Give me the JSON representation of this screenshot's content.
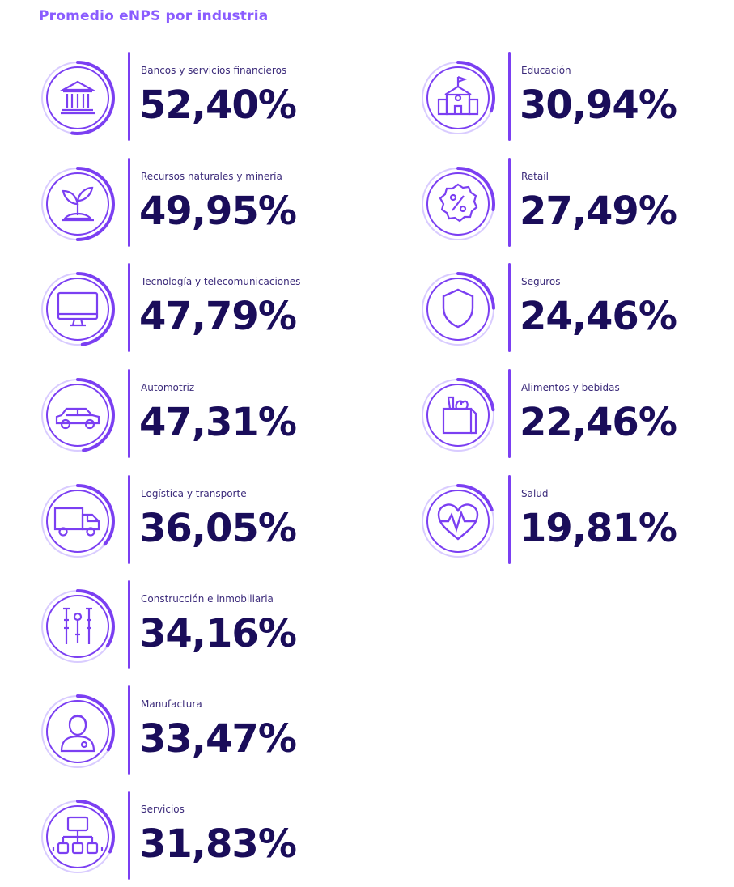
{
  "chart_data": {
    "type": "table",
    "title": "Promedio eNPS por industria",
    "items": [
      {
        "label": "Bancos y servicios financieros",
        "value": "52,40%",
        "num": 52.4,
        "icon": "bank-icon"
      },
      {
        "label": "Recursos naturales y minería",
        "value": "49,95%",
        "num": 49.95,
        "icon": "plant-icon"
      },
      {
        "label": "Tecnología y telecomunicaciones",
        "value": "47,79%",
        "num": 47.79,
        "icon": "monitor-icon"
      },
      {
        "label": "Automotriz",
        "value": "47,31%",
        "num": 47.31,
        "icon": "car-icon"
      },
      {
        "label": "Logística y transporte",
        "value": "36,05%",
        "num": 36.05,
        "icon": "truck-icon"
      },
      {
        "label": "Construcción e inmobiliaria",
        "value": "34,16%",
        "num": 34.16,
        "icon": "tools-icon"
      },
      {
        "label": "Manufactura",
        "value": "33,47%",
        "num": 33.47,
        "icon": "worker-icon"
      },
      {
        "label": "Servicios",
        "value": "31,83%",
        "num": 31.83,
        "icon": "network-icon"
      },
      {
        "label": "Educación",
        "value": "30,94%",
        "num": 30.94,
        "icon": "school-icon"
      },
      {
        "label": "Retail",
        "value": "27,49%",
        "num": 27.49,
        "icon": "discount-badge-icon"
      },
      {
        "label": "Seguros",
        "value": "24,46%",
        "num": 24.46,
        "icon": "shield-icon"
      },
      {
        "label": "Alimentos y bebidas",
        "value": "22,46%",
        "num": 22.46,
        "icon": "grocery-bag-icon"
      },
      {
        "label": "Salud",
        "value": "19,81%",
        "num": 19.81,
        "icon": "heart-pulse-icon"
      }
    ]
  },
  "colors": {
    "accent": "#7b3ff2",
    "title": "#8a5cff",
    "value_text": "#1a0d5a",
    "ring_track": "#d9ccff"
  }
}
